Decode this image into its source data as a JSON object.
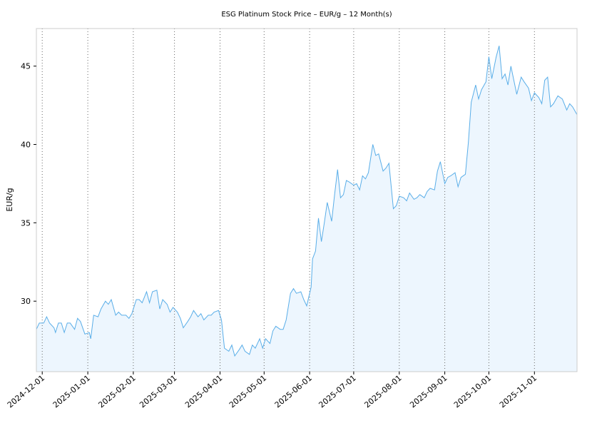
{
  "chart_data": {
    "type": "area",
    "title": "ESG Platinum Stock Price – EUR/g – 12 Month(s)",
    "xlabel": "",
    "ylabel": "EUR/g",
    "ylim": [
      25.5,
      47.4
    ],
    "xlim": [
      "2024-11-27",
      "2025-11-30"
    ],
    "grid": "vertical dotted at month starts",
    "colors": {
      "line": "#5aaee8",
      "fill": "#edf6fe",
      "frame": "#cccccc",
      "grid": "#666666"
    },
    "y_ticks": [
      30,
      35,
      40,
      45
    ],
    "x_ticks": [
      "2024-12-01",
      "2025-01-01",
      "2025-02-01",
      "2025-03-01",
      "2025-04-01",
      "2025-05-01",
      "2025-06-01",
      "2025-07-01",
      "2025-08-01",
      "2025-09-01",
      "2025-10-01",
      "2025-11-01"
    ],
    "series": [
      {
        "points": [
          [
            "2024-11-27",
            28.2
          ],
          [
            "2024-11-29",
            28.6
          ],
          [
            "2024-12-02",
            28.6
          ],
          [
            "2024-12-04",
            29.0
          ],
          [
            "2024-12-06",
            28.6
          ],
          [
            "2024-12-09",
            28.3
          ],
          [
            "2024-12-10",
            28.0
          ],
          [
            "2024-12-12",
            28.6
          ],
          [
            "2024-12-14",
            28.6
          ],
          [
            "2024-12-16",
            28.0
          ],
          [
            "2024-12-18",
            28.6
          ],
          [
            "2024-12-20",
            28.6
          ],
          [
            "2024-12-23",
            28.2
          ],
          [
            "2024-12-25",
            28.9
          ],
          [
            "2024-12-27",
            28.7
          ],
          [
            "2024-12-30",
            27.9
          ],
          [
            "2025-01-02",
            28.0
          ],
          [
            "2025-01-03",
            27.6
          ],
          [
            "2025-01-05",
            29.1
          ],
          [
            "2025-01-08",
            29.0
          ],
          [
            "2025-01-10",
            29.5
          ],
          [
            "2025-01-13",
            30.0
          ],
          [
            "2025-01-15",
            29.8
          ],
          [
            "2025-01-17",
            30.1
          ],
          [
            "2025-01-20",
            29.1
          ],
          [
            "2025-01-22",
            29.3
          ],
          [
            "2025-01-24",
            29.1
          ],
          [
            "2025-01-27",
            29.1
          ],
          [
            "2025-01-29",
            28.9
          ],
          [
            "2025-01-31",
            29.2
          ],
          [
            "2025-02-03",
            30.1
          ],
          [
            "2025-02-05",
            30.1
          ],
          [
            "2025-02-07",
            29.9
          ],
          [
            "2025-02-10",
            30.6
          ],
          [
            "2025-02-12",
            29.9
          ],
          [
            "2025-02-14",
            30.6
          ],
          [
            "2025-02-17",
            30.7
          ],
          [
            "2025-02-19",
            29.5
          ],
          [
            "2025-02-21",
            30.1
          ],
          [
            "2025-02-24",
            29.8
          ],
          [
            "2025-02-26",
            29.3
          ],
          [
            "2025-02-28",
            29.6
          ],
          [
            "2025-03-03",
            29.3
          ],
          [
            "2025-03-05",
            28.9
          ],
          [
            "2025-03-07",
            28.3
          ],
          [
            "2025-03-10",
            28.7
          ],
          [
            "2025-03-12",
            29.0
          ],
          [
            "2025-03-14",
            29.4
          ],
          [
            "2025-03-17",
            29.0
          ],
          [
            "2025-03-19",
            29.2
          ],
          [
            "2025-03-21",
            28.8
          ],
          [
            "2025-03-24",
            29.1
          ],
          [
            "2025-03-26",
            29.1
          ],
          [
            "2025-03-28",
            29.3
          ],
          [
            "2025-03-31",
            29.4
          ],
          [
            "2025-04-02",
            28.8
          ],
          [
            "2025-04-04",
            27.0
          ],
          [
            "2025-04-07",
            26.8
          ],
          [
            "2025-04-09",
            27.2
          ],
          [
            "2025-04-11",
            26.5
          ],
          [
            "2025-04-14",
            26.9
          ],
          [
            "2025-04-16",
            27.2
          ],
          [
            "2025-04-18",
            26.8
          ],
          [
            "2025-04-21",
            26.6
          ],
          [
            "2025-04-23",
            27.2
          ],
          [
            "2025-04-25",
            27.0
          ],
          [
            "2025-04-28",
            27.6
          ],
          [
            "2025-04-30",
            27.0
          ],
          [
            "2025-05-02",
            27.6
          ],
          [
            "2025-05-05",
            27.3
          ],
          [
            "2025-05-07",
            28.1
          ],
          [
            "2025-05-09",
            28.4
          ],
          [
            "2025-05-12",
            28.2
          ],
          [
            "2025-05-14",
            28.2
          ],
          [
            "2025-05-16",
            28.8
          ],
          [
            "2025-05-19",
            30.5
          ],
          [
            "2025-05-21",
            30.8
          ],
          [
            "2025-05-23",
            30.5
          ],
          [
            "2025-05-26",
            30.6
          ],
          [
            "2025-05-28",
            30.1
          ],
          [
            "2025-05-30",
            29.7
          ],
          [
            "2025-06-02",
            30.9
          ],
          [
            "2025-06-03",
            32.7
          ],
          [
            "2025-06-05",
            33.2
          ],
          [
            "2025-06-07",
            35.3
          ],
          [
            "2025-06-09",
            33.8
          ],
          [
            "2025-06-11",
            35.0
          ],
          [
            "2025-06-13",
            36.3
          ],
          [
            "2025-06-16",
            35.1
          ],
          [
            "2025-06-18",
            36.8
          ],
          [
            "2025-06-20",
            38.4
          ],
          [
            "2025-06-22",
            36.6
          ],
          [
            "2025-06-24",
            36.8
          ],
          [
            "2025-06-26",
            37.7
          ],
          [
            "2025-06-28",
            37.6
          ],
          [
            "2025-07-01",
            37.4
          ],
          [
            "2025-07-03",
            37.5
          ],
          [
            "2025-07-05",
            37.1
          ],
          [
            "2025-07-07",
            38.0
          ],
          [
            "2025-07-09",
            37.8
          ],
          [
            "2025-07-11",
            38.2
          ],
          [
            "2025-07-14",
            40.0
          ],
          [
            "2025-07-16",
            39.3
          ],
          [
            "2025-07-18",
            39.4
          ],
          [
            "2025-07-21",
            38.3
          ],
          [
            "2025-07-23",
            38.5
          ],
          [
            "2025-07-25",
            38.8
          ],
          [
            "2025-07-28",
            35.9
          ],
          [
            "2025-07-30",
            36.1
          ],
          [
            "2025-08-01",
            36.7
          ],
          [
            "2025-08-04",
            36.6
          ],
          [
            "2025-08-06",
            36.4
          ],
          [
            "2025-08-08",
            36.9
          ],
          [
            "2025-08-11",
            36.5
          ],
          [
            "2025-08-13",
            36.6
          ],
          [
            "2025-08-15",
            36.8
          ],
          [
            "2025-08-18",
            36.6
          ],
          [
            "2025-08-20",
            37.0
          ],
          [
            "2025-08-22",
            37.2
          ],
          [
            "2025-08-25",
            37.1
          ],
          [
            "2025-08-27",
            38.3
          ],
          [
            "2025-08-29",
            38.9
          ],
          [
            "2025-09-01",
            37.5
          ],
          [
            "2025-09-03",
            37.9
          ],
          [
            "2025-09-05",
            38.0
          ],
          [
            "2025-09-08",
            38.2
          ],
          [
            "2025-09-10",
            37.3
          ],
          [
            "2025-09-12",
            37.9
          ],
          [
            "2025-09-15",
            38.1
          ],
          [
            "2025-09-17",
            40.1
          ],
          [
            "2025-09-19",
            42.7
          ],
          [
            "2025-09-22",
            43.8
          ],
          [
            "2025-09-24",
            42.9
          ],
          [
            "2025-09-26",
            43.5
          ],
          [
            "2025-09-29",
            44.0
          ],
          [
            "2025-10-01",
            45.6
          ],
          [
            "2025-10-03",
            44.2
          ],
          [
            "2025-10-06",
            45.6
          ],
          [
            "2025-10-08",
            46.3
          ],
          [
            "2025-10-10",
            44.2
          ],
          [
            "2025-10-12",
            44.5
          ],
          [
            "2025-10-14",
            43.8
          ],
          [
            "2025-10-16",
            45.0
          ],
          [
            "2025-10-18",
            44.1
          ],
          [
            "2025-10-20",
            43.2
          ],
          [
            "2025-10-23",
            44.3
          ],
          [
            "2025-10-25",
            44.0
          ],
          [
            "2025-10-28",
            43.6
          ],
          [
            "2025-10-30",
            42.8
          ],
          [
            "2025-11-01",
            43.3
          ],
          [
            "2025-11-04",
            43.0
          ],
          [
            "2025-11-06",
            42.6
          ],
          [
            "2025-11-08",
            44.1
          ],
          [
            "2025-11-10",
            44.3
          ],
          [
            "2025-11-12",
            42.4
          ],
          [
            "2025-11-14",
            42.6
          ],
          [
            "2025-11-17",
            43.1
          ],
          [
            "2025-11-20",
            42.9
          ],
          [
            "2025-11-23",
            42.2
          ],
          [
            "2025-11-25",
            42.6
          ],
          [
            "2025-11-27",
            42.4
          ],
          [
            "2025-11-30",
            41.9
          ]
        ]
      }
    ]
  }
}
